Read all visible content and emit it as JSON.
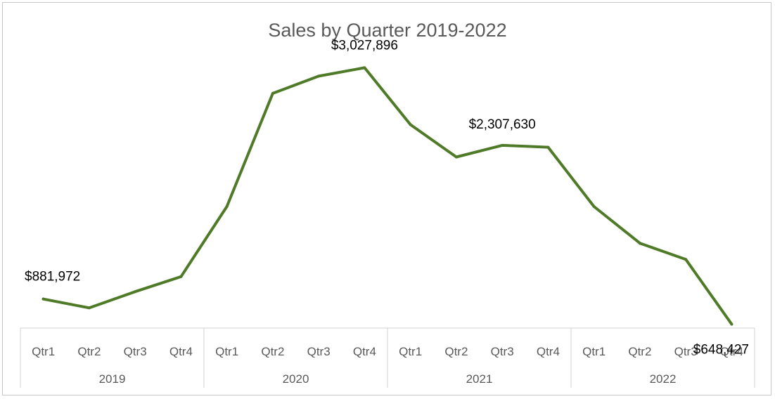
{
  "chart_data": {
    "type": "line",
    "title": "Sales by Quarter 2019-2022",
    "xlabel": "",
    "ylabel": "",
    "grid": false,
    "legend": "none",
    "line_color": "#4f7a28",
    "years": [
      "2019",
      "2020",
      "2021",
      "2022"
    ],
    "quarters": [
      "Qtr1",
      "Qtr2",
      "Qtr3",
      "Qtr4"
    ],
    "categories": [
      "2019 Qtr1",
      "2019 Qtr2",
      "2019 Qtr3",
      "2019 Qtr4",
      "2020 Qtr1",
      "2020 Qtr2",
      "2020 Qtr3",
      "2020 Qtr4",
      "2021 Qtr1",
      "2021 Qtr2",
      "2021 Qtr3",
      "2021 Qtr4",
      "2022 Qtr1",
      "2022 Qtr2",
      "2022 Qtr3",
      "2022 Qtr4"
    ],
    "values": [
      881972,
      800000,
      950000,
      1090000,
      1740000,
      2790000,
      2950000,
      3027896,
      2500000,
      2200000,
      2307630,
      2290000,
      1740000,
      1400000,
      1250000,
      648427
    ],
    "ylim": [
      0,
      3500000
    ],
    "data_labels": [
      {
        "index": 0,
        "text": "$881,972"
      },
      {
        "index": 7,
        "text": "$3,027,896"
      },
      {
        "index": 10,
        "text": "$2,307,630"
      },
      {
        "index": 15,
        "text": "$648,427"
      }
    ]
  }
}
